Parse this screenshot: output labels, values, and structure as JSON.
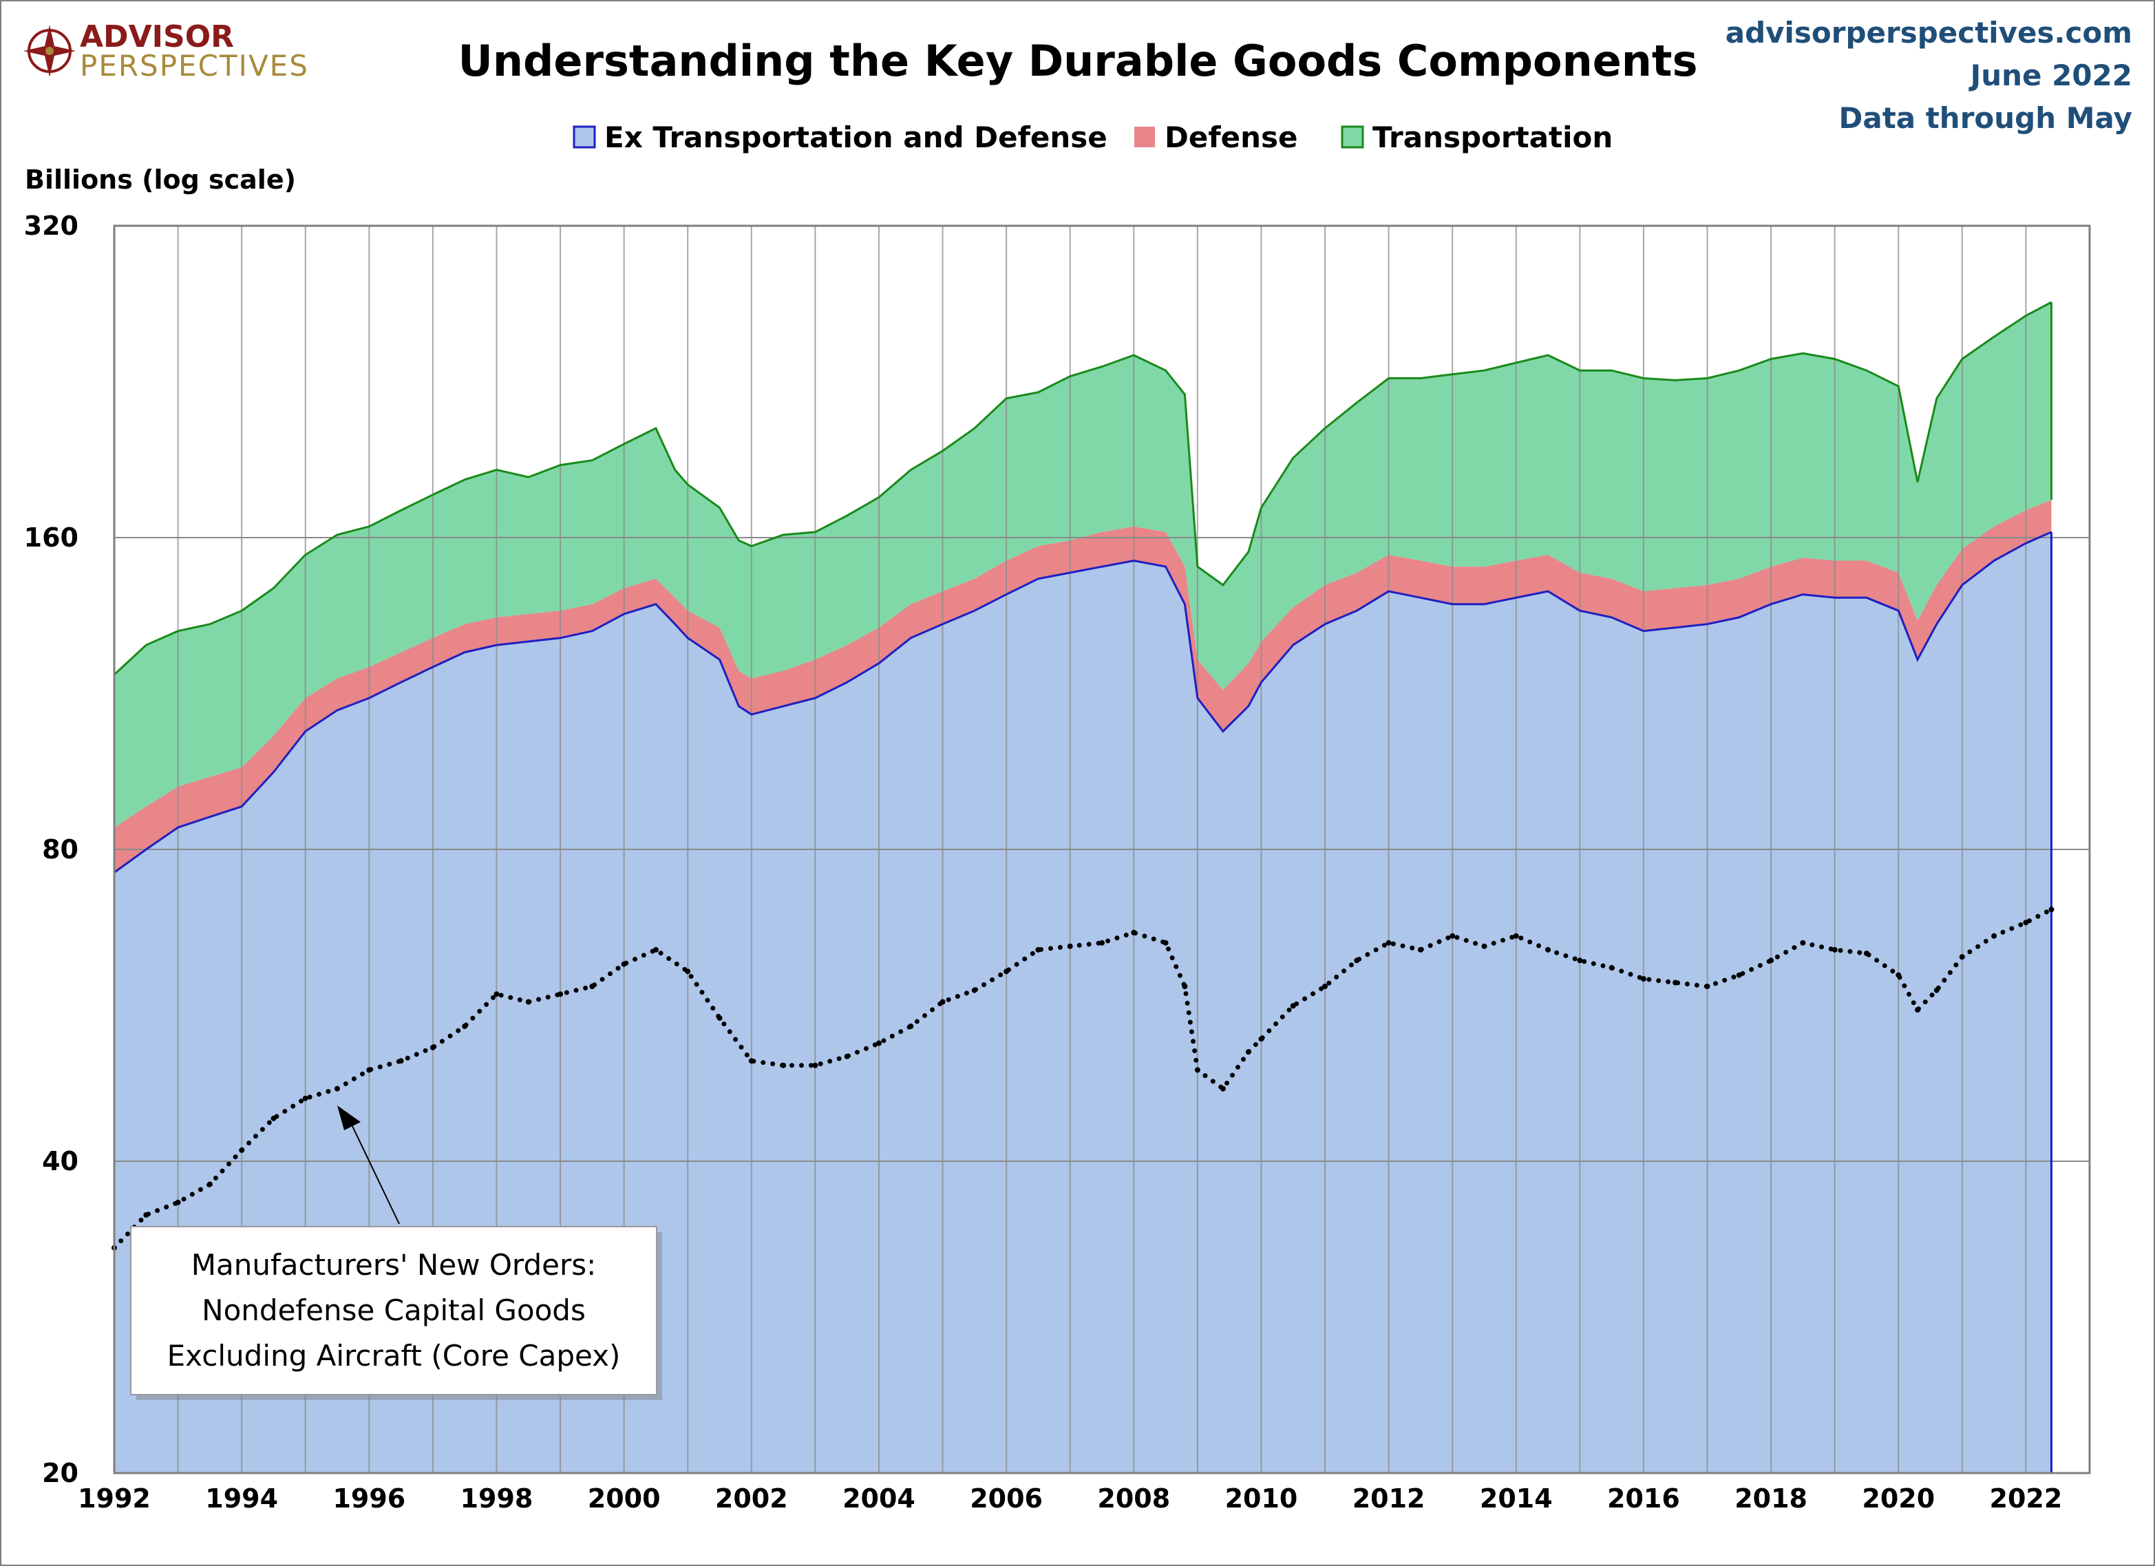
{
  "header": {
    "logo_line1": "ADVISOR",
    "logo_line2": "PERSPECTIVES",
    "title": "Understanding the Key Durable Goods Components",
    "source_line1": "advisorperspectives.com",
    "source_line2": "June 2022",
    "source_line3": "Data through May"
  },
  "colors": {
    "ex_transport": "#aec6ea",
    "ex_transport_line": "#1f1fc0",
    "defense": "#e8868a",
    "transportation": "#80d8a8",
    "transportation_line": "#1a8a1a",
    "core_capex": "#000000",
    "grid": "#8a8a8a",
    "source_text": "#1f4e79"
  },
  "annotation": {
    "line1": "Manufacturers' New Orders:",
    "line2": "Nondefense Capital Goods",
    "line3": "Excluding Aircraft (Core Capex)"
  },
  "chart_data": {
    "type": "area",
    "title": "Understanding the Key Durable Goods Components",
    "ylabel": "Billions (log scale)",
    "xlabel": "",
    "y_scale": "log",
    "ylim": [
      20,
      320
    ],
    "y_ticks": [
      "320",
      "160",
      "80",
      "40",
      "20"
    ],
    "y_tick_values": [
      320,
      160,
      80,
      40,
      20
    ],
    "xlim": [
      1992,
      2023
    ],
    "x_ticks": [
      "1992",
      "1994",
      "1996",
      "1998",
      "2000",
      "2002",
      "2004",
      "2006",
      "2008",
      "2010",
      "2012",
      "2014",
      "2016",
      "2018",
      "2020",
      "2022"
    ],
    "x_tick_values": [
      1992,
      1994,
      1996,
      1998,
      2000,
      2002,
      2004,
      2006,
      2008,
      2010,
      2012,
      2014,
      2016,
      2018,
      2020,
      2022
    ],
    "grid": true,
    "stacked": true,
    "legend_position": "top-center",
    "series": [
      {
        "name": "Ex Transportation and Defense",
        "key": "ex",
        "x": [
          1992.0,
          1992.5,
          1993.0,
          1993.5,
          1994.0,
          1994.5,
          1995.0,
          1995.5,
          1996.0,
          1996.5,
          1997.0,
          1997.5,
          1998.0,
          1998.5,
          1999.0,
          1999.5,
          2000.0,
          2000.5,
          2000.8,
          2001.0,
          2001.5,
          2001.8,
          2002.0,
          2002.5,
          2003.0,
          2003.5,
          2004.0,
          2004.5,
          2005.0,
          2005.5,
          2006.0,
          2006.5,
          2007.0,
          2007.5,
          2008.0,
          2008.5,
          2008.8,
          2009.0,
          2009.4,
          2009.8,
          2010.0,
          2010.5,
          2011.0,
          2011.5,
          2012.0,
          2012.5,
          2013.0,
          2013.5,
          2014.0,
          2014.5,
          2015.0,
          2015.5,
          2016.0,
          2016.5,
          2017.0,
          2017.5,
          2018.0,
          2018.5,
          2019.0,
          2019.5,
          2020.0,
          2020.3,
          2020.6,
          2021.0,
          2021.5,
          2022.0,
          2022.4
        ],
        "values": [
          76,
          80,
          84,
          86,
          88,
          95,
          104,
          109,
          112,
          116,
          120,
          124,
          126,
          127,
          128,
          130,
          135,
          138,
          132,
          128,
          122,
          110,
          108,
          110,
          112,
          116,
          121,
          128,
          132,
          136,
          141,
          146,
          148,
          150,
          152,
          150,
          138,
          112,
          104,
          110,
          116,
          126,
          132,
          136,
          142,
          140,
          138,
          138,
          140,
          142,
          136,
          134,
          130,
          131,
          132,
          134,
          138,
          141,
          140,
          140,
          136,
          122,
          132,
          144,
          152,
          158,
          162
        ]
      },
      {
        "name": "Defense",
        "key": "def",
        "x": [
          1992.0,
          1992.5,
          1993.0,
          1993.5,
          1994.0,
          1994.5,
          1995.0,
          1995.5,
          1996.0,
          1996.5,
          1997.0,
          1997.5,
          1998.0,
          1998.5,
          1999.0,
          1999.5,
          2000.0,
          2000.5,
          2000.8,
          2001.0,
          2001.5,
          2001.8,
          2002.0,
          2002.5,
          2003.0,
          2003.5,
          2004.0,
          2004.5,
          2005.0,
          2005.5,
          2006.0,
          2006.5,
          2007.0,
          2007.5,
          2008.0,
          2008.5,
          2008.8,
          2009.0,
          2009.4,
          2009.8,
          2010.0,
          2010.5,
          2011.0,
          2011.5,
          2012.0,
          2012.5,
          2013.0,
          2013.5,
          2014.0,
          2014.5,
          2015.0,
          2015.5,
          2016.0,
          2016.5,
          2017.0,
          2017.5,
          2018.0,
          2018.5,
          2019.0,
          2019.5,
          2020.0,
          2020.3,
          2020.6,
          2021.0,
          2021.5,
          2022.0,
          2022.4
        ],
        "values": [
          8,
          8,
          8,
          8,
          8,
          8,
          8,
          8,
          8,
          8,
          8,
          8,
          8,
          8,
          8,
          8,
          8,
          8,
          8,
          8,
          9,
          9,
          9,
          9,
          10,
          10,
          10,
          10,
          10,
          10,
          11,
          11,
          11,
          12,
          12,
          12,
          12,
          10,
          10,
          11,
          11,
          11,
          12,
          12,
          12,
          12,
          12,
          12,
          12,
          12,
          12,
          12,
          12,
          12,
          12,
          12,
          12,
          12,
          12,
          12,
          12,
          11,
          12,
          12,
          12,
          12,
          12
        ]
      },
      {
        "name": "Transportation",
        "key": "trn",
        "x": [
          1992.0,
          1992.5,
          1993.0,
          1993.5,
          1994.0,
          1994.5,
          1995.0,
          1995.5,
          1996.0,
          1996.5,
          1997.0,
          1997.5,
          1998.0,
          1998.5,
          1999.0,
          1999.5,
          2000.0,
          2000.5,
          2000.8,
          2001.0,
          2001.5,
          2001.8,
          2002.0,
          2002.5,
          2003.0,
          2003.5,
          2004.0,
          2004.5,
          2005.0,
          2005.5,
          2006.0,
          2006.5,
          2007.0,
          2007.5,
          2008.0,
          2008.5,
          2008.8,
          2009.0,
          2009.4,
          2009.8,
          2010.0,
          2010.5,
          2011.0,
          2011.5,
          2012.0,
          2012.5,
          2013.0,
          2013.5,
          2014.0,
          2014.5,
          2015.0,
          2015.5,
          2016.0,
          2016.5,
          2017.0,
          2017.5,
          2018.0,
          2018.5,
          2019.0,
          2019.5,
          2020.0,
          2020.3,
          2020.6,
          2021.0,
          2021.5,
          2022.0,
          2022.4
        ],
        "values": [
          34,
          38,
          38,
          38,
          40,
          40,
          42,
          44,
          44,
          46,
          48,
          50,
          52,
          48,
          52,
          52,
          54,
          58,
          46,
          44,
          40,
          40,
          40,
          42,
          40,
          42,
          44,
          48,
          52,
          58,
          66,
          64,
          70,
          72,
          76,
          70,
          70,
          28,
          30,
          34,
          44,
          54,
          60,
          68,
          74,
          76,
          80,
          82,
          84,
          86,
          84,
          86,
          86,
          84,
          84,
          86,
          88,
          88,
          86,
          80,
          76,
          48,
          74,
          82,
          86,
          92,
          96
        ]
      },
      {
        "name": "Manufacturers' New Orders: Nondefense Capital Goods Excluding Aircraft (Core Capex)",
        "key": "capex",
        "style": "dotted",
        "x": [
          1992.0,
          1992.5,
          1993.0,
          1993.5,
          1994.0,
          1994.5,
          1995.0,
          1995.5,
          1996.0,
          1996.5,
          1997.0,
          1997.5,
          1998.0,
          1998.5,
          1999.0,
          1999.5,
          2000.0,
          2000.5,
          2001.0,
          2001.5,
          2002.0,
          2002.5,
          2003.0,
          2003.5,
          2004.0,
          2004.5,
          2005.0,
          2005.5,
          2006.0,
          2006.5,
          2007.0,
          2007.5,
          2008.0,
          2008.5,
          2008.8,
          2009.0,
          2009.4,
          2009.8,
          2010.0,
          2010.5,
          2011.0,
          2011.5,
          2012.0,
          2012.5,
          2013.0,
          2013.5,
          2014.0,
          2014.5,
          2015.0,
          2015.5,
          2016.0,
          2016.5,
          2017.0,
          2017.5,
          2018.0,
          2018.5,
          2019.0,
          2019.5,
          2020.0,
          2020.3,
          2020.6,
          2021.0,
          2021.5,
          2022.0,
          2022.4
        ],
        "values": [
          33,
          35.5,
          36.5,
          38,
          41,
          44,
          46,
          47,
          49,
          50,
          51.5,
          54,
          58,
          57,
          58,
          59,
          62,
          64,
          61,
          55,
          50,
          49.5,
          49.5,
          50.5,
          52,
          54,
          57,
          58.5,
          61,
          64,
          64.5,
          65,
          66.5,
          65,
          59,
          49,
          47,
          51,
          52.5,
          56.5,
          59,
          62.5,
          65,
          64,
          66,
          64.5,
          66,
          64,
          62.5,
          61.5,
          60,
          59.5,
          59,
          60.5,
          62.5,
          65,
          64,
          63.5,
          60.5,
          56,
          58.5,
          63,
          66,
          68,
          70
        ]
      }
    ]
  }
}
